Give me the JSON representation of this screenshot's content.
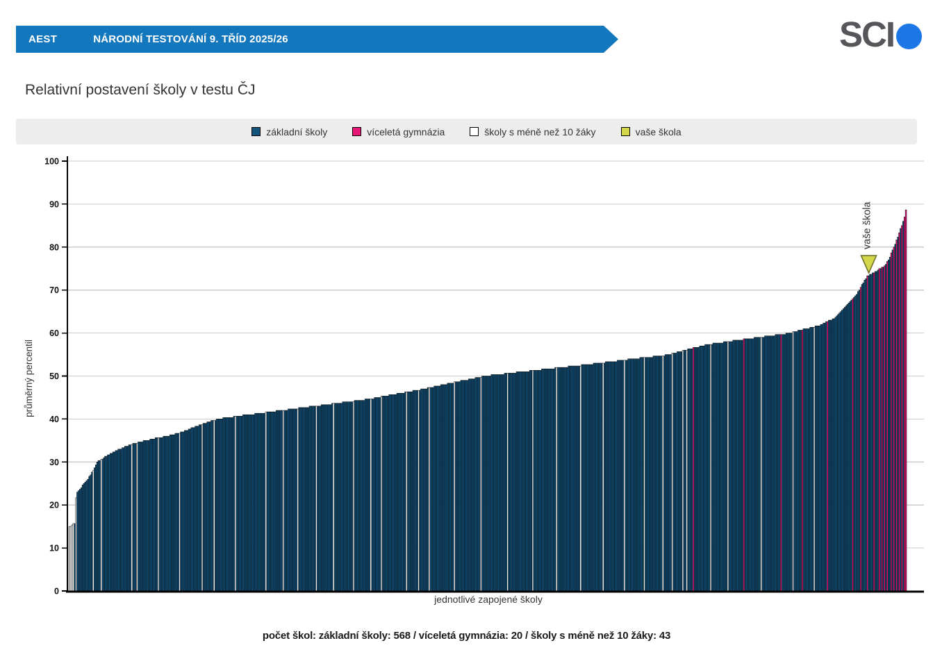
{
  "header": {
    "banner": {
      "code": "AEST",
      "title": "NÁRODNÍ TESTOVÁNÍ 9. TŘÍD 2025/26",
      "color": "#1377bd"
    },
    "logo": {
      "text": "SCI",
      "dot_color": "#1b76e6"
    }
  },
  "page_title": "Relativní postavení školy v testu ČJ",
  "legend": {
    "items": [
      {
        "label": "základní školy",
        "color": "#14537b",
        "border": "#000000"
      },
      {
        "label": "víceletá gymnázia",
        "color": "#e81878",
        "border": "#000000"
      },
      {
        "label": "školy s méně než 10 žáky",
        "color": "#ffffff",
        "border": "#000000"
      },
      {
        "label": "vaše škola",
        "color": "#d4d74a",
        "border": "#000000"
      }
    ]
  },
  "chart_data": {
    "type": "bar",
    "title": "Relativní postavení školy v testu ČJ",
    "xlabel": "jednotlivé zapojené školy",
    "ylabel": "průměrný percentil",
    "ylim": [
      0,
      100
    ],
    "yticks": [
      0,
      10,
      20,
      30,
      40,
      50,
      60,
      70,
      80,
      90,
      100
    ],
    "grid": true,
    "legend_position": "top",
    "total_bars": 631,
    "counts": {
      "zakladni_skoly": 568,
      "viceleta_gymnazia": 20,
      "skoly_s_mene_nez_10_zaky": 43
    },
    "value_range": [
      15,
      88.5
    ],
    "anchors": [
      [
        0,
        15
      ],
      [
        2,
        15.3
      ],
      [
        4,
        15.8
      ],
      [
        5,
        21.5
      ],
      [
        6,
        23
      ],
      [
        10,
        24.5
      ],
      [
        14,
        26
      ],
      [
        18,
        28
      ],
      [
        21,
        30
      ],
      [
        26,
        31
      ],
      [
        32,
        32
      ],
      [
        38,
        33
      ],
      [
        46,
        34
      ],
      [
        55,
        34.8
      ],
      [
        65,
        35.5
      ],
      [
        75,
        36.1
      ],
      [
        85,
        37
      ],
      [
        95,
        38.2
      ],
      [
        105,
        39.3
      ],
      [
        112,
        40
      ],
      [
        130,
        40.8
      ],
      [
        150,
        41.6
      ],
      [
        175,
        42.6
      ],
      [
        200,
        43.6
      ],
      [
        225,
        44.6
      ],
      [
        262,
        46.7
      ],
      [
        285,
        48.2
      ],
      [
        313,
        50
      ],
      [
        350,
        51.3
      ],
      [
        391,
        52.7
      ],
      [
        420,
        53.8
      ],
      [
        450,
        54.9
      ],
      [
        480,
        57.3
      ],
      [
        510,
        58.6
      ],
      [
        543,
        60
      ],
      [
        555,
        61
      ],
      [
        565,
        61.8
      ],
      [
        570,
        62.6
      ],
      [
        576,
        63.4
      ],
      [
        581,
        65
      ],
      [
        588,
        67.2
      ],
      [
        592,
        68.6
      ],
      [
        595,
        70
      ],
      [
        598,
        71.8
      ],
      [
        601,
        73.2
      ],
      [
        606,
        74
      ],
      [
        610,
        74.9
      ],
      [
        613,
        75.4
      ],
      [
        616,
        76.5
      ],
      [
        618,
        77.8
      ],
      [
        620,
        79.2
      ],
      [
        622,
        80.8
      ],
      [
        624,
        82.3
      ],
      [
        626,
        84.2
      ],
      [
        628,
        86
      ],
      [
        629,
        87
      ],
      [
        630,
        88.5
      ]
    ],
    "quantize_step": 0.3333,
    "magenta_indices": [
      470,
      508,
      536,
      552,
      571,
      590,
      596,
      601,
      606,
      610,
      612,
      614,
      616,
      619,
      621,
      623,
      625,
      627,
      629,
      630
    ],
    "white_indices": [
      0,
      1,
      2,
      3,
      5,
      18,
      24,
      47,
      51,
      67,
      83,
      100,
      109,
      125,
      148,
      161,
      172,
      186,
      199,
      214,
      227,
      235,
      254,
      263,
      271,
      290,
      310,
      330,
      349,
      367,
      385,
      402,
      418,
      433,
      447,
      454,
      462,
      465,
      483,
      496,
      521,
      545,
      561
    ],
    "marker": {
      "index": 602,
      "label": "vaše škola",
      "approx_value": 73.5
    },
    "colors": {
      "zakladni": "#14537b",
      "gymnazia": "#e81878",
      "mene_nez_10": "#ffffff",
      "your_school": "#d4d74a",
      "bar_border": "#000000",
      "grid": "#cbcbcb",
      "axis": "#000000"
    }
  },
  "footer": {
    "summary": "počet škol: základní školy: 568 / víceletá gymnázia: 20 / školy s méně než 10 žáky: 43"
  }
}
